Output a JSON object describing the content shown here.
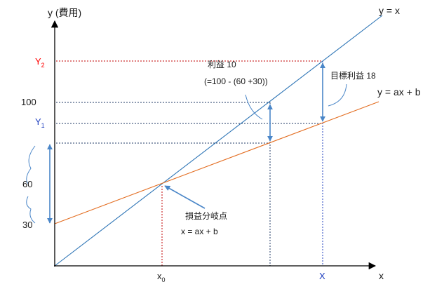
{
  "axes": {
    "y_label": "y (費用)",
    "x_label": "x"
  },
  "lines": {
    "cost_line_label": "y = ax + b",
    "revenue_line_label": "y = x",
    "cost_line_color": "#e36c1f",
    "revenue_line_color": "#2e75b6"
  },
  "y_ticks": {
    "y2_main": "Y",
    "y2_sub": "2",
    "y1_main": "Y",
    "y1_sub": "1",
    "v100": "100",
    "v60": "60",
    "v30": "30"
  },
  "x_ticks": {
    "x0_main": "x",
    "x0_sub": "0",
    "X": "X"
  },
  "annotations": {
    "profit_line1": "利益 10",
    "profit_line2": "(=100 - (60 +30))",
    "target_profit": "目標利益 18",
    "breakeven_line1": "損益分岐点",
    "breakeven_line2": "x = ax + b"
  },
  "colors": {
    "red": "#ff0000",
    "blue": "#1f3fbf",
    "arrow": "#4a86c8",
    "guide_dark": "#1f3864",
    "guide_red": "#c00000",
    "text": "#1a1a1a"
  }
}
